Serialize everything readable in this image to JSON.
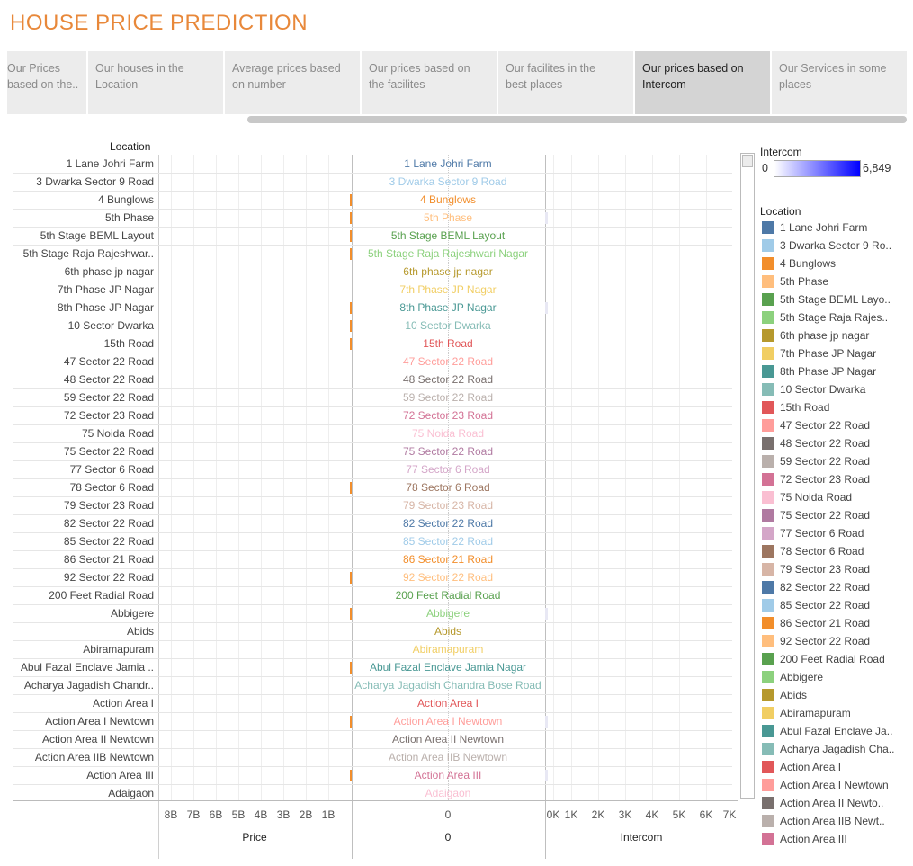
{
  "title": "HOUSE PRICE PREDICTION",
  "tabs": [
    {
      "line1": "Our Prices",
      "line2": "based on the..",
      "active": false
    },
    {
      "line1": "Our houses in the",
      "line2": "Location",
      "active": false
    },
    {
      "line1": "Average prices based",
      "line2": "on number",
      "active": false
    },
    {
      "line1": "Our prices based on",
      "line2": "the facilites",
      "active": false
    },
    {
      "line1": "Our facilites in the",
      "line2": "best places",
      "active": false
    },
    {
      "line1": "Our prices based on",
      "line2": "Intercom",
      "active": true
    },
    {
      "line1": "Our Services in some",
      "line2": "places",
      "active": false
    }
  ],
  "row_header": "Location",
  "rows": [
    {
      "label": "1 Lane Johri Farm",
      "center": "1 Lane Johri Farm",
      "color": "#4e79a7",
      "price_bar": 0,
      "intercom_bar": 0
    },
    {
      "label": "3 Dwarka Sector 9 Road",
      "center": "3 Dwarka Sector 9 Road",
      "color": "#a0cbe8",
      "price_bar": 0,
      "intercom_bar": 0
    },
    {
      "label": "4 Bunglows",
      "center": "4 Bunglows",
      "color": "#f28e2b",
      "price_bar": 1,
      "intercom_bar": 0
    },
    {
      "label": "5th Phase",
      "center": "5th Phase",
      "color": "#ffbe7d",
      "price_bar": 1,
      "intercom_bar": 1
    },
    {
      "label": "5th Stage BEML Layout",
      "center": "5th Stage BEML Layout",
      "color": "#59a14f",
      "price_bar": 1,
      "intercom_bar": 0
    },
    {
      "label": "5th Stage Raja Rajeshwar..",
      "center": "5th Stage Raja Rajeshwari Nagar",
      "color": "#8cd17d",
      "price_bar": 1,
      "intercom_bar": 0
    },
    {
      "label": "6th phase jp nagar",
      "center": "6th phase jp nagar",
      "color": "#b6992d",
      "price_bar": 0,
      "intercom_bar": 0
    },
    {
      "label": "7th Phase JP Nagar",
      "center": "7th Phase JP Nagar",
      "color": "#f1ce63",
      "price_bar": 0,
      "intercom_bar": 0
    },
    {
      "label": "8th Phase JP Nagar",
      "center": "8th Phase JP Nagar",
      "color": "#499894",
      "price_bar": 1,
      "intercom_bar": 1
    },
    {
      "label": "10 Sector Dwarka",
      "center": "10 Sector Dwarka",
      "color": "#86bcb6",
      "price_bar": 1,
      "intercom_bar": 0
    },
    {
      "label": "15th Road",
      "center": "15th Road",
      "color": "#e15759",
      "price_bar": 1,
      "intercom_bar": 0
    },
    {
      "label": "47 Sector 22 Road",
      "center": "47 Sector 22 Road",
      "color": "#ff9d9a",
      "price_bar": 0,
      "intercom_bar": 0
    },
    {
      "label": "48 Sector 22 Road",
      "center": "48 Sector 22 Road",
      "color": "#79706e",
      "price_bar": 0,
      "intercom_bar": 0
    },
    {
      "label": "59 Sector 22 Road",
      "center": "59 Sector 22 Road",
      "color": "#bab0ac",
      "price_bar": 0,
      "intercom_bar": 0
    },
    {
      "label": "72 Sector 23 Road",
      "center": "72 Sector 23 Road",
      "color": "#d37295",
      "price_bar": 0,
      "intercom_bar": 0
    },
    {
      "label": "75 Noida Road",
      "center": "75 Noida Road",
      "color": "#fabfd2",
      "price_bar": 0,
      "intercom_bar": 0
    },
    {
      "label": "75 Sector 22 Road",
      "center": "75 Sector 22 Road",
      "color": "#b07aa1",
      "price_bar": 0,
      "intercom_bar": 0
    },
    {
      "label": "77 Sector 6 Road",
      "center": "77 Sector 6 Road",
      "color": "#d4a6c8",
      "price_bar": 0,
      "intercom_bar": 0
    },
    {
      "label": "78 Sector 6 Road",
      "center": "78 Sector 6 Road",
      "color": "#9d7660",
      "price_bar": 1,
      "intercom_bar": 0
    },
    {
      "label": "79 Sector 23 Road",
      "center": "79 Sector 23 Road",
      "color": "#d7b5a6",
      "price_bar": 0,
      "intercom_bar": 0
    },
    {
      "label": "82 Sector 22 Road",
      "center": "82 Sector 22 Road",
      "color": "#4e79a7",
      "price_bar": 0,
      "intercom_bar": 0
    },
    {
      "label": "85 Sector 22 Road",
      "center": "85 Sector 22 Road",
      "color": "#a0cbe8",
      "price_bar": 0,
      "intercom_bar": 0
    },
    {
      "label": "86 Sector 21 Road",
      "center": "86 Sector 21 Road",
      "color": "#f28e2b",
      "price_bar": 0,
      "intercom_bar": 0
    },
    {
      "label": "92 Sector 22 Road",
      "center": "92 Sector 22 Road",
      "color": "#ffbe7d",
      "price_bar": 1,
      "intercom_bar": 0
    },
    {
      "label": "200 Feet Radial Road",
      "center": "200 Feet Radial Road",
      "color": "#59a14f",
      "price_bar": 0,
      "intercom_bar": 0
    },
    {
      "label": "Abbigere",
      "center": "Abbigere",
      "color": "#8cd17d",
      "price_bar": 1,
      "intercom_bar": 1
    },
    {
      "label": "Abids",
      "center": "Abids",
      "color": "#b6992d",
      "price_bar": 0,
      "intercom_bar": 0
    },
    {
      "label": "Abiramapuram",
      "center": "Abiramapuram",
      "color": "#f1ce63",
      "price_bar": 0,
      "intercom_bar": 0
    },
    {
      "label": "Abul Fazal Enclave Jamia ..",
      "center": "Abul Fazal Enclave Jamia Nagar",
      "color": "#499894",
      "price_bar": 1,
      "intercom_bar": 0
    },
    {
      "label": "Acharya Jagadish Chandr..",
      "center": "Acharya Jagadish Chandra Bose Road",
      "color": "#86bcb6",
      "price_bar": 0,
      "intercom_bar": 0
    },
    {
      "label": "Action Area I",
      "center": "Action Area I",
      "color": "#e15759",
      "price_bar": 0,
      "intercom_bar": 0
    },
    {
      "label": "Action Area I Newtown",
      "center": "Action Area I Newtown",
      "color": "#ff9d9a",
      "price_bar": 1,
      "intercom_bar": 1
    },
    {
      "label": "Action Area II Newtown",
      "center": "Action Area II Newtown",
      "color": "#79706e",
      "price_bar": 0,
      "intercom_bar": 0
    },
    {
      "label": "Action Area IIB Newtown",
      "center": "Action Area IIB Newtown",
      "color": "#bab0ac",
      "price_bar": 0,
      "intercom_bar": 0
    },
    {
      "label": "Action Area III",
      "center": "Action Area III",
      "color": "#d37295",
      "price_bar": 1,
      "intercom_bar": 1
    },
    {
      "label": "Adaigaon",
      "center": "Adaigaon",
      "color": "#fabfd2",
      "price_bar": 0,
      "intercom_bar": 0
    }
  ],
  "axes": {
    "price_ticks": [
      "8B",
      "7B",
      "6B",
      "5B",
      "4B",
      "3B",
      "2B",
      "1B"
    ],
    "price_title": "Price",
    "center_tick": "0",
    "center_title": "0",
    "intercom_ticks": [
      "0K",
      "1K",
      "2K",
      "3K",
      "4K",
      "5K",
      "6K",
      "7K"
    ],
    "intercom_title": "Intercom"
  },
  "legend": {
    "intercom_title": "Intercom",
    "intercom_min": "0",
    "intercom_max": "6,849",
    "location_title": "Location",
    "items": [
      {
        "label": "1 Lane Johri Farm",
        "color": "#4e79a7"
      },
      {
        "label": "3 Dwarka Sector 9 Ro..",
        "color": "#a0cbe8"
      },
      {
        "label": "4 Bunglows",
        "color": "#f28e2b"
      },
      {
        "label": "5th Phase",
        "color": "#ffbe7d"
      },
      {
        "label": "5th Stage BEML Layo..",
        "color": "#59a14f"
      },
      {
        "label": "5th Stage Raja Rajes..",
        "color": "#8cd17d"
      },
      {
        "label": "6th phase jp nagar",
        "color": "#b6992d"
      },
      {
        "label": "7th Phase JP Nagar",
        "color": "#f1ce63"
      },
      {
        "label": "8th Phase JP Nagar",
        "color": "#499894"
      },
      {
        "label": "10 Sector Dwarka",
        "color": "#86bcb6"
      },
      {
        "label": "15th Road",
        "color": "#e15759"
      },
      {
        "label": "47 Sector 22 Road",
        "color": "#ff9d9a"
      },
      {
        "label": "48 Sector 22 Road",
        "color": "#79706e"
      },
      {
        "label": "59 Sector 22 Road",
        "color": "#bab0ac"
      },
      {
        "label": "72 Sector 23 Road",
        "color": "#d37295"
      },
      {
        "label": "75 Noida Road",
        "color": "#fabfd2"
      },
      {
        "label": "75 Sector 22 Road",
        "color": "#b07aa1"
      },
      {
        "label": "77 Sector 6 Road",
        "color": "#d4a6c8"
      },
      {
        "label": "78 Sector 6 Road",
        "color": "#9d7660"
      },
      {
        "label": "79 Sector 23 Road",
        "color": "#d7b5a6"
      },
      {
        "label": "82 Sector 22 Road",
        "color": "#4e79a7"
      },
      {
        "label": "85 Sector 22 Road",
        "color": "#a0cbe8"
      },
      {
        "label": "86 Sector 21 Road",
        "color": "#f28e2b"
      },
      {
        "label": "92 Sector 22 Road",
        "color": "#ffbe7d"
      },
      {
        "label": "200 Feet Radial Road",
        "color": "#59a14f"
      },
      {
        "label": "Abbigere",
        "color": "#8cd17d"
      },
      {
        "label": "Abids",
        "color": "#b6992d"
      },
      {
        "label": "Abiramapuram",
        "color": "#f1ce63"
      },
      {
        "label": "Abul Fazal Enclave Ja..",
        "color": "#499894"
      },
      {
        "label": "Acharya Jagadish Cha..",
        "color": "#86bcb6"
      },
      {
        "label": "Action Area I",
        "color": "#e15759"
      },
      {
        "label": "Action Area I Newtown",
        "color": "#ff9d9a"
      },
      {
        "label": "Action Area II Newto..",
        "color": "#79706e"
      },
      {
        "label": "Action Area IIB Newt..",
        "color": "#bab0ac"
      },
      {
        "label": "Action Area III",
        "color": "#d37295"
      }
    ]
  }
}
